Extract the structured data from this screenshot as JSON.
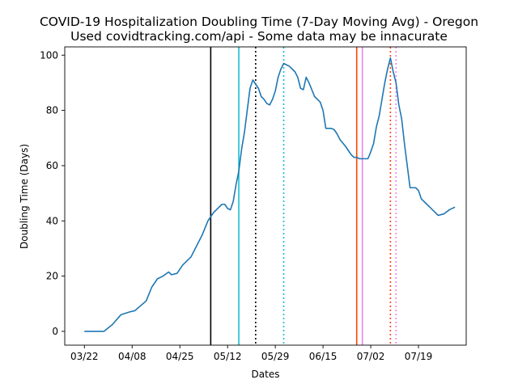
{
  "chart_data": {
    "type": "line",
    "title": "COVID-19 Hospitalization Doubling Time (7-Day Moving Avg) - Oregon",
    "subtitle": "Used covidtracking.com/api - Some data may be innacurate",
    "xlabel": "Dates",
    "ylabel": "Doubling Time (Days)",
    "year": 2020,
    "xlim": [
      "2020-03-15",
      "2020-08-05"
    ],
    "ylim": [
      -5,
      103
    ],
    "x_ticks": [
      "03/22",
      "04/08",
      "04/25",
      "05/12",
      "05/29",
      "06/15",
      "07/02",
      "07/19"
    ],
    "y_ticks": [
      0,
      20,
      40,
      60,
      80,
      100
    ],
    "grid": false,
    "legend": "none",
    "series": [
      {
        "color": "#1f77b4",
        "points": [
          [
            "2020-03-22",
            0
          ],
          [
            "2020-03-25",
            0
          ],
          [
            "2020-03-29",
            0
          ],
          [
            "2020-04-01",
            2.5
          ],
          [
            "2020-04-04",
            6
          ],
          [
            "2020-04-07",
            7
          ],
          [
            "2020-04-09",
            7.5
          ],
          [
            "2020-04-13",
            11
          ],
          [
            "2020-04-15",
            16
          ],
          [
            "2020-04-17",
            19
          ],
          [
            "2020-04-19",
            20
          ],
          [
            "2020-04-21",
            21.5
          ],
          [
            "2020-04-22",
            20.5
          ],
          [
            "2020-04-24",
            21
          ],
          [
            "2020-04-26",
            24
          ],
          [
            "2020-04-29",
            27
          ],
          [
            "2020-05-01",
            31
          ],
          [
            "2020-05-03",
            35
          ],
          [
            "2020-05-05",
            40
          ],
          [
            "2020-05-07",
            43
          ],
          [
            "2020-05-08",
            44
          ],
          [
            "2020-05-10",
            46
          ],
          [
            "2020-05-11",
            46
          ],
          [
            "2020-05-12",
            44.5
          ],
          [
            "2020-05-13",
            44
          ],
          [
            "2020-05-14",
            47
          ],
          [
            "2020-05-15",
            53
          ],
          [
            "2020-05-16",
            58
          ],
          [
            "2020-05-17",
            66
          ],
          [
            "2020-05-18",
            72
          ],
          [
            "2020-05-19",
            80
          ],
          [
            "2020-05-20",
            88
          ],
          [
            "2020-05-21",
            91
          ],
          [
            "2020-05-22",
            89.5
          ],
          [
            "2020-05-23",
            88
          ],
          [
            "2020-05-24",
            85
          ],
          [
            "2020-05-25",
            84
          ],
          [
            "2020-05-26",
            82.5
          ],
          [
            "2020-05-27",
            82
          ],
          [
            "2020-05-28",
            84
          ],
          [
            "2020-05-29",
            87
          ],
          [
            "2020-05-30",
            92
          ],
          [
            "2020-05-31",
            95
          ],
          [
            "2020-06-01",
            97
          ],
          [
            "2020-06-03",
            96
          ],
          [
            "2020-06-05",
            94
          ],
          [
            "2020-06-06",
            92
          ],
          [
            "2020-06-07",
            88
          ],
          [
            "2020-06-08",
            87.5
          ],
          [
            "2020-06-09",
            92
          ],
          [
            "2020-06-10",
            90
          ],
          [
            "2020-06-11",
            87.5
          ],
          [
            "2020-06-12",
            85
          ],
          [
            "2020-06-14",
            83
          ],
          [
            "2020-06-15",
            80
          ],
          [
            "2020-06-16",
            73.5
          ],
          [
            "2020-06-18",
            73.5
          ],
          [
            "2020-06-19",
            73
          ],
          [
            "2020-06-20",
            71.5
          ],
          [
            "2020-06-21",
            69.5
          ],
          [
            "2020-06-23",
            67
          ],
          [
            "2020-06-25",
            64
          ],
          [
            "2020-06-26",
            63
          ],
          [
            "2020-06-27",
            63
          ],
          [
            "2020-06-28",
            62.5
          ],
          [
            "2020-06-29",
            62.5
          ],
          [
            "2020-06-30",
            62.5
          ],
          [
            "2020-07-01",
            62.5
          ],
          [
            "2020-07-02",
            65
          ],
          [
            "2020-07-03",
            68
          ],
          [
            "2020-07-04",
            74
          ],
          [
            "2020-07-05",
            78
          ],
          [
            "2020-07-06",
            84
          ],
          [
            "2020-07-07",
            90
          ],
          [
            "2020-07-08",
            95
          ],
          [
            "2020-07-09",
            99
          ],
          [
            "2020-07-10",
            94
          ],
          [
            "2020-07-11",
            90
          ],
          [
            "2020-07-12",
            82
          ],
          [
            "2020-07-13",
            77
          ],
          [
            "2020-07-14",
            68
          ],
          [
            "2020-07-15",
            60
          ],
          [
            "2020-07-16",
            52
          ],
          [
            "2020-07-17",
            52
          ],
          [
            "2020-07-18",
            52
          ],
          [
            "2020-07-19",
            51
          ],
          [
            "2020-07-20",
            48
          ],
          [
            "2020-07-22",
            46
          ],
          [
            "2020-07-24",
            44
          ],
          [
            "2020-07-26",
            42
          ],
          [
            "2020-07-28",
            42.5
          ],
          [
            "2020-07-30",
            44
          ],
          [
            "2020-08-01",
            45
          ]
        ]
      }
    ],
    "vertical_lines": [
      {
        "x": "2020-05-06",
        "color": "#000000",
        "style": "solid"
      },
      {
        "x": "2020-05-16",
        "color": "#17becf",
        "style": "solid"
      },
      {
        "x": "2020-05-22",
        "color": "#000000",
        "style": "dotted"
      },
      {
        "x": "2020-06-01",
        "color": "#17becf",
        "style": "dotted"
      },
      {
        "x": "2020-06-27",
        "color": "#ff4500",
        "style": "solid"
      },
      {
        "x": "2020-06-29",
        "color": "#ee82ee",
        "style": "solid"
      },
      {
        "x": "2020-07-09",
        "color": "#ff4500",
        "style": "dotted"
      },
      {
        "x": "2020-07-11",
        "color": "#ee82ee",
        "style": "dotted"
      }
    ]
  }
}
